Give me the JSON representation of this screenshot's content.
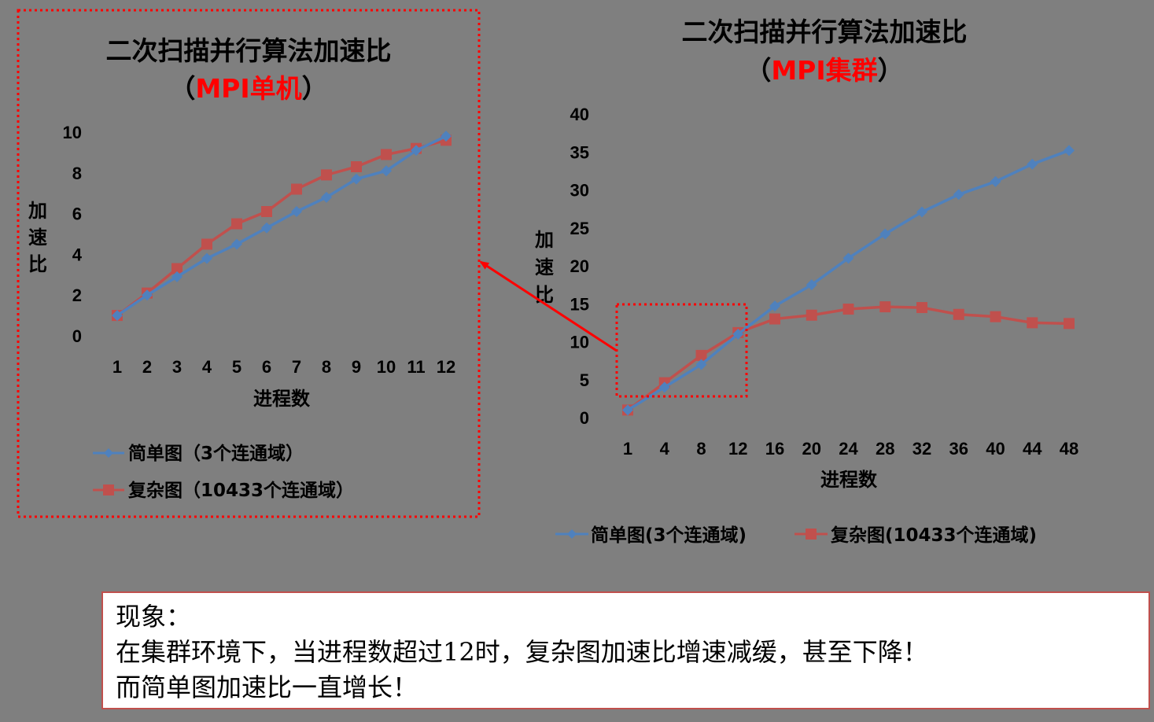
{
  "colors": {
    "simple": "#4f81bd",
    "complex": "#c0504d",
    "highlight": "#ff0000",
    "background": "#7f7f7f"
  },
  "chart_data": [
    {
      "type": "line",
      "title": "二次扫描并行算法加速比",
      "subtitle_open": "（",
      "subtitle_red": "MPI单机",
      "subtitle_close": "）",
      "xlabel": "进程数",
      "ylabel": "加速比",
      "ylim": [
        0,
        10
      ],
      "yticks": [
        "0",
        "2",
        "4",
        "6",
        "8",
        "10"
      ],
      "categories": [
        "1",
        "2",
        "3",
        "4",
        "5",
        "6",
        "7",
        "8",
        "9",
        "10",
        "11",
        "12"
      ],
      "series": [
        {
          "name": "简单图（3个连通域）",
          "values": [
            1.0,
            2.0,
            2.9,
            3.8,
            4.5,
            5.3,
            6.1,
            6.8,
            7.7,
            8.1,
            9.1,
            9.8
          ]
        },
        {
          "name": "复杂图（10433个连通域）",
          "values": [
            1.0,
            2.1,
            3.3,
            4.5,
            5.5,
            6.1,
            7.2,
            7.9,
            8.3,
            8.9,
            9.2,
            9.6
          ]
        }
      ],
      "legend": "bottom",
      "grid": false
    },
    {
      "type": "line",
      "title": "二次扫描并行算法加速比",
      "subtitle_open": "（",
      "subtitle_red": "MPI集群",
      "subtitle_close": "）",
      "xlabel": "进程数",
      "ylabel": "加速比",
      "ylim": [
        0,
        40
      ],
      "yticks": [
        "0",
        "5",
        "10",
        "15",
        "20",
        "25",
        "30",
        "35",
        "40"
      ],
      "categories": [
        "1",
        "4",
        "8",
        "12",
        "16",
        "20",
        "24",
        "28",
        "32",
        "36",
        "40",
        "44",
        "48"
      ],
      "series": [
        {
          "name": "简单图(3个连通域)",
          "values": [
            1.0,
            4.0,
            7.0,
            11.0,
            14.7,
            17.5,
            21.0,
            24.2,
            27.1,
            29.4,
            31.1,
            33.4,
            35.2
          ]
        },
        {
          "name": "复杂图(10433个连通域)",
          "values": [
            1.0,
            4.6,
            8.2,
            11.2,
            13.0,
            13.5,
            14.3,
            14.6,
            14.5,
            13.6,
            13.3,
            12.5,
            12.4
          ]
        }
      ],
      "legend": "bottom",
      "grid": false
    }
  ],
  "note": {
    "lines": [
      "现象：",
      "在集群环境下，当进程数超过12时，复杂图加速比增速减缓，甚至下降！",
      "而简单图加速比一直增长！"
    ]
  }
}
